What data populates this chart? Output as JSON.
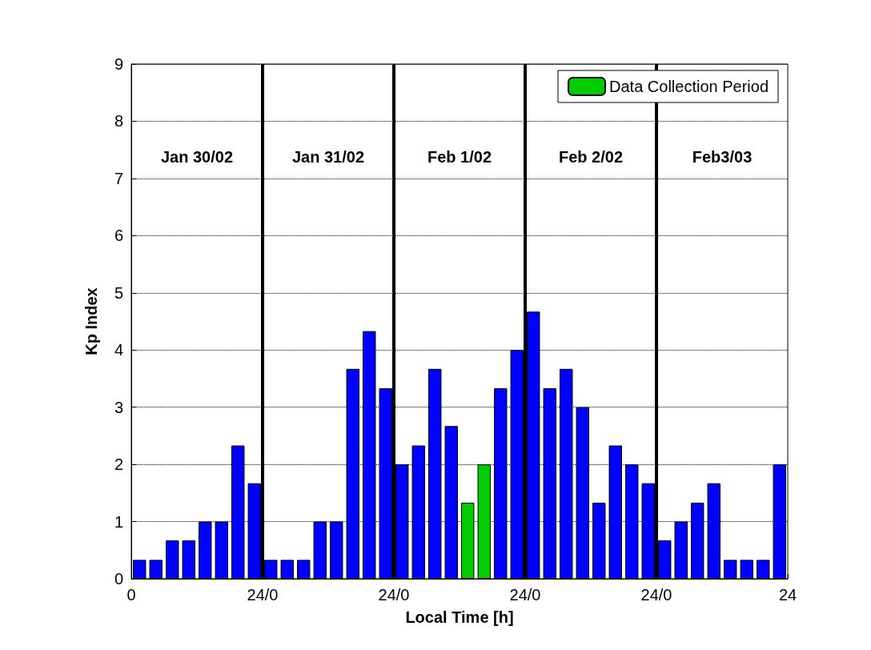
{
  "chart_data": {
    "type": "bar",
    "xlabel": "Local Time [h]",
    "ylabel": "Kp Index",
    "x": [
      "--01-30T01:30",
      "--01-30T04:30",
      "--01-30T07:30",
      "--01-30T10:30",
      "--01-30T13:30",
      "--01-30T16:30",
      "--01-30T19:30",
      "--01-30T22:30",
      "--01-31T01:30",
      "--01-31T04:30",
      "--01-31T07:30",
      "--01-31T10:30",
      "--01-31T13:30",
      "--01-31T16:30",
      "--01-31T19:30",
      "--01-31T22:30",
      "--02-01T01:30",
      "--02-01T04:30",
      "--02-01T07:30",
      "--02-01T10:30",
      "--02-01T13:30",
      "--02-01T16:30",
      "--02-01T19:30",
      "--02-01T22:30",
      "--02-02T01:30",
      "--02-02T04:30",
      "--02-02T07:30",
      "--02-02T10:30",
      "--02-02T13:30",
      "--02-02T16:30",
      "--02-02T19:30",
      "--02-02T22:30",
      "--02-03T01:30",
      "--02-03T04:30",
      "--02-03T07:30",
      "--02-03T10:30",
      "--02-03T13:30",
      "--02-03T16:30",
      "--02-03T19:30",
      "--02-03T22:30"
    ],
    "series": [
      {
        "color": "#0000ff",
        "values": [
          0.33,
          0.33,
          0.67,
          0.67,
          1,
          1,
          2.33,
          1.67,
          0.33,
          0.33,
          0.33,
          1,
          1,
          3.67,
          4.33,
          3.33,
          2,
          2.33,
          3.67,
          2.67,
          null,
          null,
          3.33,
          4,
          4.67,
          3.33,
          3.67,
          3,
          1.33,
          2.33,
          2,
          1.67,
          0.67,
          1,
          1.33,
          1.67,
          0.33,
          0.33,
          0.33,
          2
        ]
      },
      {
        "name": "Data Collection Period",
        "color": "#00cc00",
        "values": [
          null,
          null,
          null,
          null,
          null,
          null,
          null,
          null,
          null,
          null,
          null,
          null,
          null,
          null,
          null,
          null,
          null,
          null,
          null,
          null,
          1.33,
          2,
          null,
          null,
          null,
          null,
          null,
          null,
          null,
          null,
          null,
          null,
          null,
          null,
          null,
          null,
          null,
          null,
          null,
          null
        ]
      }
    ],
    "xlim": [
      "--01-30T00:00",
      "--02-04T00:00"
    ],
    "xticks": [
      {
        "value": "--01-30T00:00",
        "label": "0"
      },
      {
        "value": "--01-31T00:00",
        "label": "24/0"
      },
      {
        "value": "--02-01T00:00",
        "label": "24/0"
      },
      {
        "value": "--02-02T00:00",
        "label": "24/0"
      },
      {
        "value": "--02-03T00:00",
        "label": "24/0"
      },
      {
        "value": "--02-04T00:00",
        "label": "24"
      }
    ],
    "ylim": [
      0,
      9
    ],
    "yticks": [
      0,
      1,
      2,
      3,
      4,
      5,
      6,
      7,
      8,
      9
    ],
    "grid": "y",
    "legend": "top right",
    "ref_lines": [
      {
        "axis": "x",
        "value": "--01-31T00:00",
        "color": "#000000"
      },
      {
        "axis": "x",
        "value": "--02-01T00:00",
        "color": "#000000"
      },
      {
        "axis": "x",
        "value": "--02-02T00:00",
        "color": "#000000"
      },
      {
        "axis": "x",
        "value": "--02-03T00:00",
        "color": "#000000"
      }
    ],
    "annotations": [
      "Jan 30/02",
      "Jan 31/02",
      "Feb 1/02",
      "Feb 2/02",
      "Feb3/03"
    ]
  }
}
